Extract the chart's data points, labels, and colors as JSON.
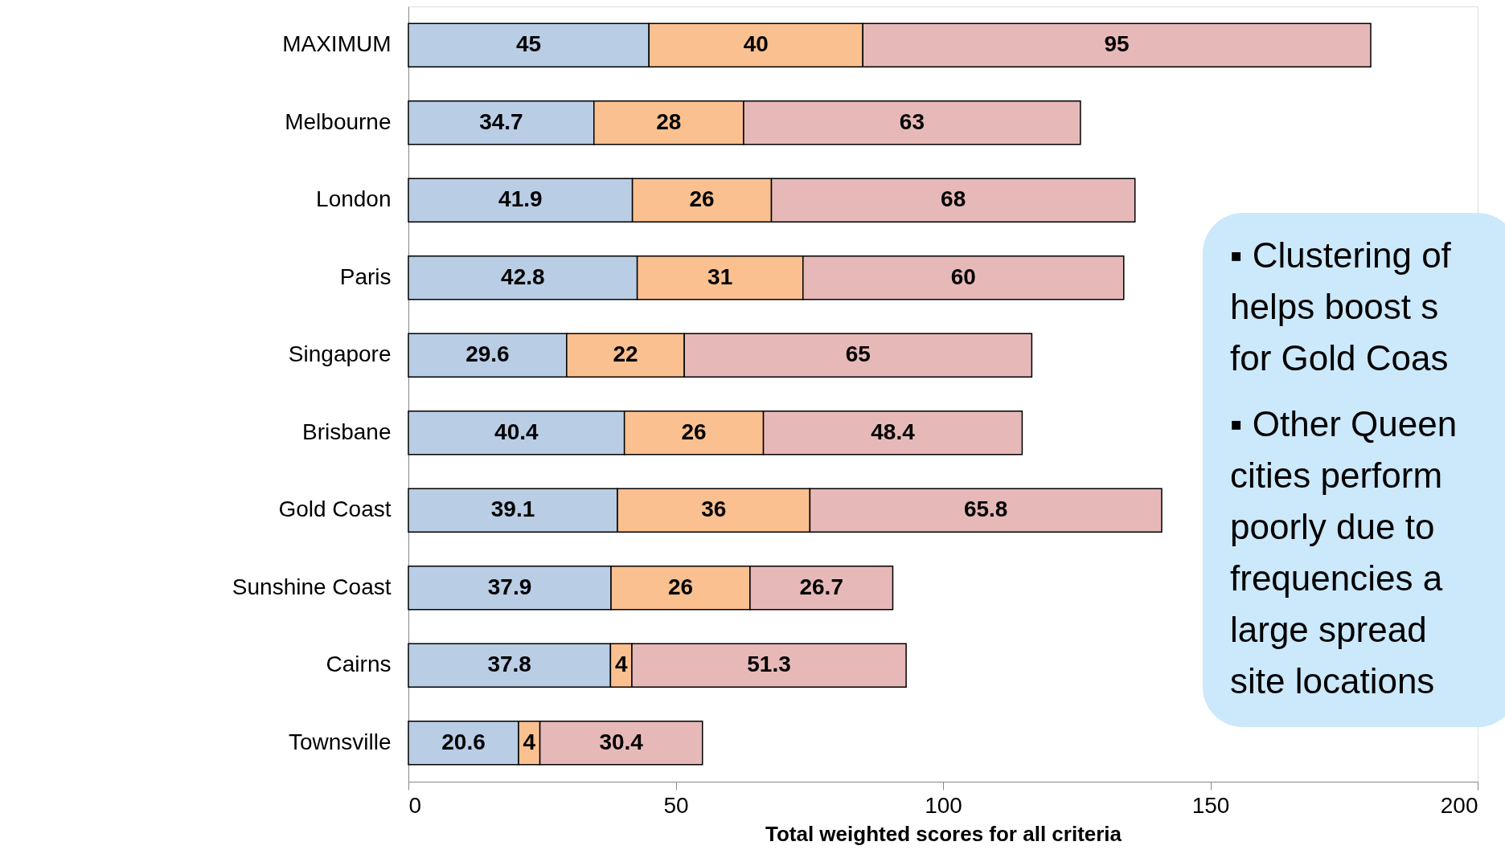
{
  "chart_data": {
    "type": "bar",
    "orientation": "horizontal",
    "stacked": true,
    "data_labels": true,
    "grid": false,
    "xlabel": "Total weighted scores for all criteria",
    "categories": [
      "MAXIMUM",
      "Melbourne",
      "London",
      "Paris",
      "Singapore",
      "Brisbane",
      "Gold Coast",
      "Sunshine Coast",
      "Cairns",
      "Townsville"
    ],
    "xlim": [
      0,
      200
    ],
    "xticks": [
      0,
      50,
      100,
      150,
      200
    ],
    "series": [
      {
        "color": "#b9cde5",
        "values": [
          45,
          34.7,
          41.9,
          42.8,
          29.6,
          40.4,
          39.1,
          37.9,
          37.8,
          20.6
        ]
      },
      {
        "color": "#fac090",
        "values": [
          40,
          28,
          26,
          31,
          22,
          26,
          36,
          26,
          4,
          4
        ]
      },
      {
        "color": "#e6b9b8",
        "values": [
          95,
          63,
          68,
          60,
          65,
          48.4,
          65.8,
          26.7,
          51.3,
          30.4
        ]
      }
    ],
    "annotations": [
      "▪ Clustering of\nhelps boost s\nfor Gold Coas",
      "▪ Other Queen\ncities perform\npoorly due to\nfrequencies a\nlarge spread\nsite locations"
    ]
  }
}
